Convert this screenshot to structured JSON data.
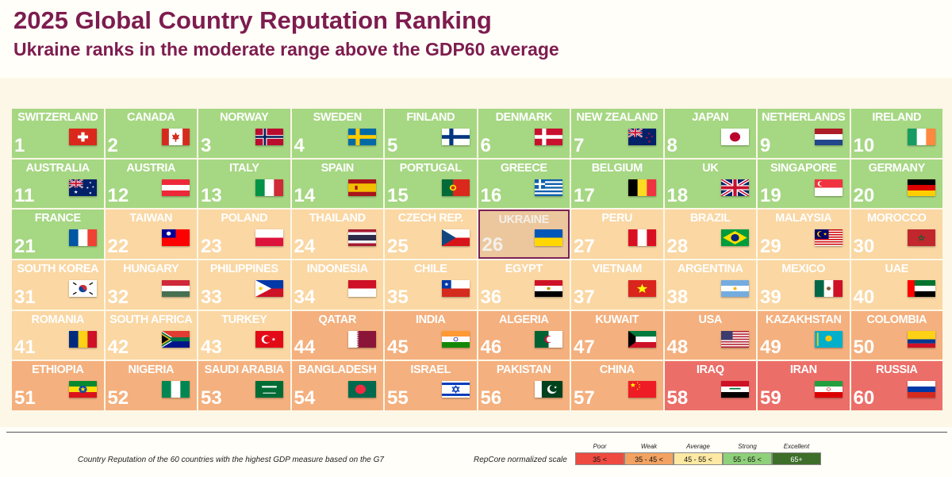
{
  "header": {
    "title": "2025 Global Country Reputation Ranking",
    "subtitle": "Ukraine ranks in the moderate range above the GDP60 average"
  },
  "footer": {
    "note": "Country Reputation of the 60 countries with the highest GDP measure based on the G7",
    "scale_caption": "RepCore normalized scale"
  },
  "scale": [
    {
      "name": "Poor",
      "range": "35 <",
      "color": "#ef4a3f"
    },
    {
      "name": "Weak",
      "range": "35 - 45 <",
      "color": "#f3a261"
    },
    {
      "name": "Average",
      "range": "45 - 55 <",
      "color": "#fde9a3"
    },
    {
      "name": "Strong",
      "range": "55 - 65 <",
      "color": "#8fd07a"
    },
    {
      "name": "Excellent",
      "range": "65+",
      "color": "#3e6f2a"
    }
  ],
  "tier_colors": {
    "strong": "#a6d783",
    "average": "#fad7a3",
    "weak": "#f4b07e",
    "poor": "#ec6e68",
    "highlight": "#ecc79e"
  },
  "chart_data": {
    "type": "table",
    "title": "2025 Global Country Reputation Ranking",
    "columns": 10,
    "highlight": "UKRAINE",
    "countries": [
      {
        "rank": 1,
        "name": "SWITZERLAND",
        "tier": "strong",
        "flag": "switzerland-flag-icon"
      },
      {
        "rank": 2,
        "name": "CANADA",
        "tier": "strong",
        "flag": "canada-flag-icon"
      },
      {
        "rank": 3,
        "name": "NORWAY",
        "tier": "strong",
        "flag": "norway-flag-icon"
      },
      {
        "rank": 4,
        "name": "SWEDEN",
        "tier": "strong",
        "flag": "sweden-flag-icon"
      },
      {
        "rank": 5,
        "name": "FINLAND",
        "tier": "strong",
        "flag": "finland-flag-icon"
      },
      {
        "rank": 6,
        "name": "DENMARK",
        "tier": "strong",
        "flag": "denmark-flag-icon"
      },
      {
        "rank": 7,
        "name": "NEW ZEALAND",
        "tier": "strong",
        "flag": "new-zealand-flag-icon"
      },
      {
        "rank": 8,
        "name": "JAPAN",
        "tier": "strong",
        "flag": "japan-flag-icon"
      },
      {
        "rank": 9,
        "name": "NETHERLANDS",
        "tier": "strong",
        "flag": "netherlands-flag-icon"
      },
      {
        "rank": 10,
        "name": "IRELAND",
        "tier": "strong",
        "flag": "ireland-flag-icon"
      },
      {
        "rank": 11,
        "name": "AUSTRALIA",
        "tier": "strong",
        "flag": "australia-flag-icon"
      },
      {
        "rank": 12,
        "name": "AUSTRIA",
        "tier": "strong",
        "flag": "austria-flag-icon"
      },
      {
        "rank": 13,
        "name": "ITALY",
        "tier": "strong",
        "flag": "italy-flag-icon"
      },
      {
        "rank": 14,
        "name": "SPAIN",
        "tier": "strong",
        "flag": "spain-flag-icon"
      },
      {
        "rank": 15,
        "name": "PORTUGAL",
        "tier": "strong",
        "flag": "portugal-flag-icon"
      },
      {
        "rank": 16,
        "name": "GREECE",
        "tier": "strong",
        "flag": "greece-flag-icon"
      },
      {
        "rank": 17,
        "name": "BELGIUM",
        "tier": "strong",
        "flag": "belgium-flag-icon"
      },
      {
        "rank": 18,
        "name": "UK",
        "tier": "strong",
        "flag": "uk-flag-icon"
      },
      {
        "rank": 19,
        "name": "SINGAPORE",
        "tier": "strong",
        "flag": "singapore-flag-icon"
      },
      {
        "rank": 20,
        "name": "GERMANY",
        "tier": "strong",
        "flag": "germany-flag-icon"
      },
      {
        "rank": 21,
        "name": "FRANCE",
        "tier": "strong",
        "flag": "france-flag-icon"
      },
      {
        "rank": 22,
        "name": "TAIWAN",
        "tier": "average",
        "flag": "taiwan-flag-icon"
      },
      {
        "rank": 23,
        "name": "POLAND",
        "tier": "average",
        "flag": "poland-flag-icon"
      },
      {
        "rank": 24,
        "name": "THAILAND",
        "tier": "average",
        "flag": "thailand-flag-icon"
      },
      {
        "rank": 25,
        "name": "CZECH REP.",
        "tier": "average",
        "flag": "czech-flag-icon"
      },
      {
        "rank": 26,
        "name": "UKRAINE",
        "tier": "highlight",
        "flag": "ukraine-flag-icon"
      },
      {
        "rank": 27,
        "name": "PERU",
        "tier": "average",
        "flag": "peru-flag-icon"
      },
      {
        "rank": 28,
        "name": "BRAZIL",
        "tier": "average",
        "flag": "brazil-flag-icon"
      },
      {
        "rank": 29,
        "name": "MALAYSIA",
        "tier": "average",
        "flag": "malaysia-flag-icon"
      },
      {
        "rank": 30,
        "name": "MOROCCO",
        "tier": "average",
        "flag": "morocco-flag-icon"
      },
      {
        "rank": 31,
        "name": "SOUTH KOREA",
        "tier": "average",
        "flag": "south-korea-flag-icon"
      },
      {
        "rank": 32,
        "name": "HUNGARY",
        "tier": "average",
        "flag": "hungary-flag-icon"
      },
      {
        "rank": 33,
        "name": "PHILIPPINES",
        "tier": "average",
        "flag": "philippines-flag-icon"
      },
      {
        "rank": 34,
        "name": "INDONESIA",
        "tier": "average",
        "flag": "indonesia-flag-icon"
      },
      {
        "rank": 35,
        "name": "CHILE",
        "tier": "average",
        "flag": "chile-flag-icon"
      },
      {
        "rank": 36,
        "name": "EGYPT",
        "tier": "average",
        "flag": "egypt-flag-icon"
      },
      {
        "rank": 37,
        "name": "VIETNAM",
        "tier": "average",
        "flag": "vietnam-flag-icon"
      },
      {
        "rank": 38,
        "name": "ARGENTINA",
        "tier": "average",
        "flag": "argentina-flag-icon"
      },
      {
        "rank": 39,
        "name": "MEXICO",
        "tier": "average",
        "flag": "mexico-flag-icon"
      },
      {
        "rank": 40,
        "name": "UAE",
        "tier": "average",
        "flag": "uae-flag-icon"
      },
      {
        "rank": 41,
        "name": "ROMANIA",
        "tier": "average",
        "flag": "romania-flag-icon"
      },
      {
        "rank": 42,
        "name": "SOUTH AFRICA",
        "tier": "average",
        "flag": "south-africa-flag-icon"
      },
      {
        "rank": 43,
        "name": "TURKEY",
        "tier": "average",
        "flag": "turkey-flag-icon"
      },
      {
        "rank": 44,
        "name": "QATAR",
        "tier": "weak",
        "flag": "qatar-flag-icon"
      },
      {
        "rank": 45,
        "name": "INDIA",
        "tier": "weak",
        "flag": "india-flag-icon"
      },
      {
        "rank": 46,
        "name": "ALGERIA",
        "tier": "weak",
        "flag": "algeria-flag-icon"
      },
      {
        "rank": 47,
        "name": "KUWAIT",
        "tier": "weak",
        "flag": "kuwait-flag-icon"
      },
      {
        "rank": 48,
        "name": "USA",
        "tier": "weak",
        "flag": "usa-flag-icon"
      },
      {
        "rank": 49,
        "name": "KAZAKHSTAN",
        "tier": "weak",
        "flag": "kazakhstan-flag-icon"
      },
      {
        "rank": 50,
        "name": "COLOMBIA",
        "tier": "weak",
        "flag": "colombia-flag-icon"
      },
      {
        "rank": 51,
        "name": "ETHIOPIA",
        "tier": "weak",
        "flag": "ethiopia-flag-icon"
      },
      {
        "rank": 52,
        "name": "NIGERIA",
        "tier": "weak",
        "flag": "nigeria-flag-icon"
      },
      {
        "rank": 53,
        "name": "SAUDI ARABIA",
        "tier": "weak",
        "flag": "saudi-arabia-flag-icon"
      },
      {
        "rank": 54,
        "name": "BANGLADESH",
        "tier": "weak",
        "flag": "bangladesh-flag-icon"
      },
      {
        "rank": 55,
        "name": "ISRAEL",
        "tier": "weak",
        "flag": "israel-flag-icon"
      },
      {
        "rank": 56,
        "name": "PAKISTAN",
        "tier": "weak",
        "flag": "pakistan-flag-icon"
      },
      {
        "rank": 57,
        "name": "CHINA",
        "tier": "weak",
        "flag": "china-flag-icon"
      },
      {
        "rank": 58,
        "name": "IRAQ",
        "tier": "poor",
        "flag": "iraq-flag-icon"
      },
      {
        "rank": 59,
        "name": "IRAN",
        "tier": "poor",
        "flag": "iran-flag-icon"
      },
      {
        "rank": 60,
        "name": "RUSSIA",
        "tier": "poor",
        "flag": "russia-flag-icon"
      }
    ]
  }
}
